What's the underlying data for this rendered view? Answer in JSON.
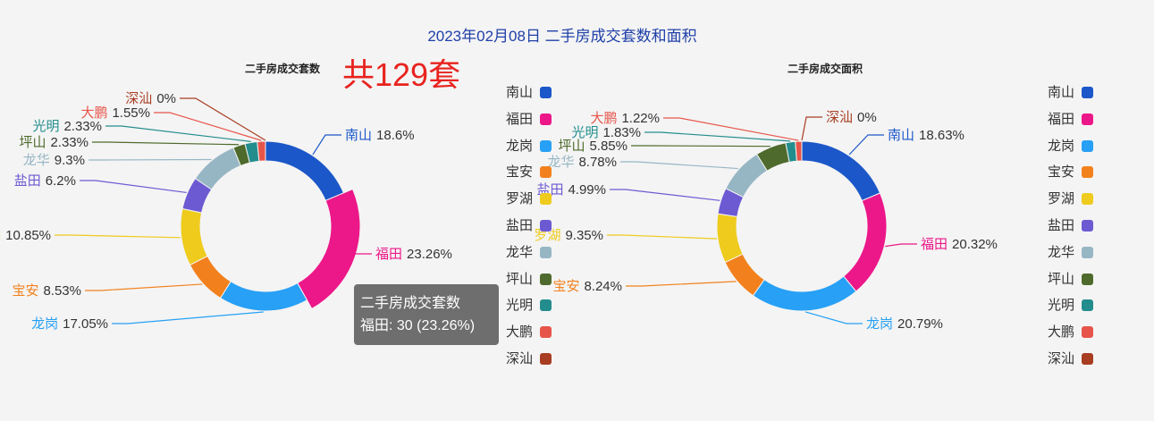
{
  "title": "2023年02月08日 二手房成交套数和面积",
  "total_label": "共129套",
  "colors": [
    "#1b57c8",
    "#ec1789",
    "#27a0f5",
    "#f2811d",
    "#eecb1d",
    "#6c5ad3",
    "#97b6c4",
    "#4e6a2c",
    "#238d8d",
    "#e7554a",
    "#a83d22"
  ],
  "tooltip": {
    "title": "二手房成交套数",
    "content": "福田: 30 (23.26%)"
  },
  "chart_data": [
    {
      "type": "pie",
      "title": "二手房成交套数",
      "categories": [
        "南山",
        "福田",
        "龙岗",
        "宝安",
        "罗湖",
        "盐田",
        "龙华",
        "坪山",
        "光明",
        "大鹏",
        "深汕"
      ],
      "values": [
        24,
        30,
        22,
        11,
        14,
        8,
        12,
        3,
        3,
        2,
        0
      ],
      "percent_labels": [
        "18.6%",
        "23.26%",
        "17.05%",
        "8.53%",
        "10.85%",
        "6.2%",
        "9.3%",
        "2.33%",
        "2.33%",
        "1.55%",
        "0%"
      ],
      "highlighted": "福田",
      "legend": "right"
    },
    {
      "type": "pie",
      "title": "二手房成交面积",
      "categories": [
        "南山",
        "福田",
        "龙岗",
        "宝安",
        "罗湖",
        "盐田",
        "龙华",
        "坪山",
        "光明",
        "大鹏",
        "深汕"
      ],
      "values": [
        18.63,
        20.32,
        20.79,
        8.24,
        9.35,
        4.99,
        8.78,
        5.85,
        1.83,
        1.22,
        0
      ],
      "percent_labels": [
        "18.63%",
        "20.32%",
        "20.79%",
        "8.24%",
        "9.35%",
        "4.99%",
        "8.78%",
        "5.85%",
        "1.83%",
        "1.22%",
        "0%"
      ],
      "legend": "right"
    }
  ]
}
